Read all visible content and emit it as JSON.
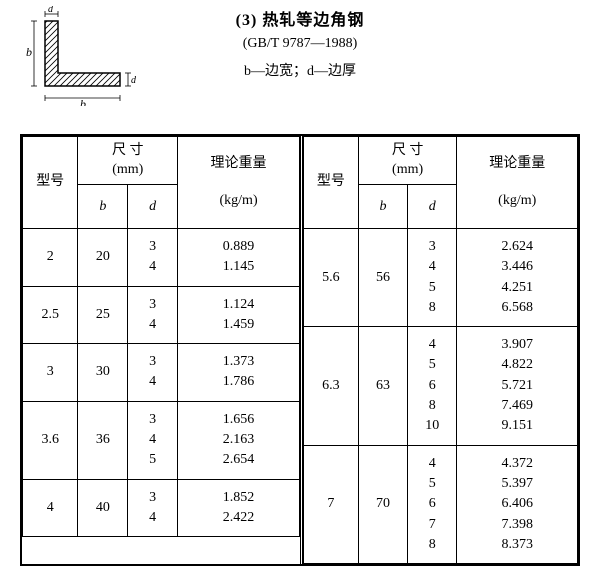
{
  "title": "(3) 热轧等边角钢",
  "standard": "(GB/T 9787—1988)",
  "legend": "b—边宽；d—边厚",
  "diagram": {
    "width": 130,
    "height": 100,
    "stroke": "#000000",
    "label_b": "b",
    "label_d": "d"
  },
  "header": {
    "model": "型号",
    "dim_top": "尺 寸",
    "dim_unit": "(mm)",
    "weight_top": "理论重量",
    "weight_unit": "(kg/m)",
    "col_b": "b",
    "col_d": "d"
  },
  "left_rows": [
    {
      "model": "2",
      "b": "20",
      "d": "3\n4",
      "w": "0.889\n1.145"
    },
    {
      "model": "2.5",
      "b": "25",
      "d": "3\n4",
      "w": "1.124\n1.459"
    },
    {
      "model": "3",
      "b": "30",
      "d": "3\n4",
      "w": "1.373\n1.786"
    },
    {
      "model": "3.6",
      "b": "36",
      "d": "3\n4\n5",
      "w": "1.656\n2.163\n2.654"
    },
    {
      "model": "4",
      "b": "40",
      "d": "3\n4",
      "w": "1.852\n2.422"
    }
  ],
  "right_rows": [
    {
      "model": "5.6",
      "b": "56",
      "d": "3\n4\n5\n8",
      "w": "2.624\n3.446\n4.251\n6.568"
    },
    {
      "model": "6.3",
      "b": "63",
      "d": "4\n5\n6\n8\n10",
      "w": "3.907\n4.822\n5.721\n7.469\n9.151"
    },
    {
      "model": "7",
      "b": "70",
      "d": "4\n5\n6\n7\n8",
      "w": "4.372\n5.397\n6.406\n7.398\n8.373"
    }
  ]
}
